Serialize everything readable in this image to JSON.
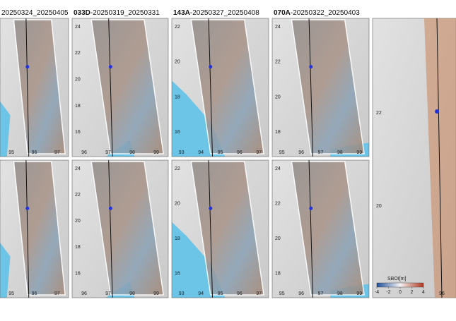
{
  "top_panels": [
    {
      "dates": "20250324_20250405",
      "xticks": [
        95,
        96,
        97
      ]
    },
    {
      "code": "033D",
      "dates": "-20250319_20250331",
      "xticks": [
        96,
        97,
        98,
        99
      ],
      "yticks": [
        24,
        22,
        20,
        18,
        16
      ]
    },
    {
      "code": "143A",
      "dates": "-20250327_20250408",
      "xticks": [
        93,
        94,
        95,
        96,
        97
      ],
      "yticks": [
        22,
        20,
        18,
        16
      ]
    },
    {
      "code": "070A",
      "dates": "-20250322_20250403",
      "xticks": [
        95,
        96,
        97,
        98,
        99
      ],
      "yticks": [
        24,
        22,
        20,
        18
      ]
    }
  ],
  "bottom_panels": [
    {
      "xticks": [
        95,
        96,
        97
      ]
    },
    {
      "xticks": [
        96,
        97,
        98,
        99
      ],
      "yticks": [
        24,
        22,
        20,
        18,
        16
      ]
    },
    {
      "xticks": [
        93,
        94,
        95,
        96,
        97
      ],
      "yticks": [
        22,
        20,
        18,
        16
      ]
    },
    {
      "xticks": [
        95,
        96,
        97,
        98,
        99
      ],
      "yticks": [
        24,
        22,
        20,
        18
      ]
    }
  ],
  "overview": {
    "yticks": [
      22,
      20
    ],
    "xticks": [
      96
    ]
  },
  "colorbar": {
    "label": "SBOI[m]",
    "ticks": [
      -4,
      -2,
      0,
      2,
      4
    ]
  }
}
